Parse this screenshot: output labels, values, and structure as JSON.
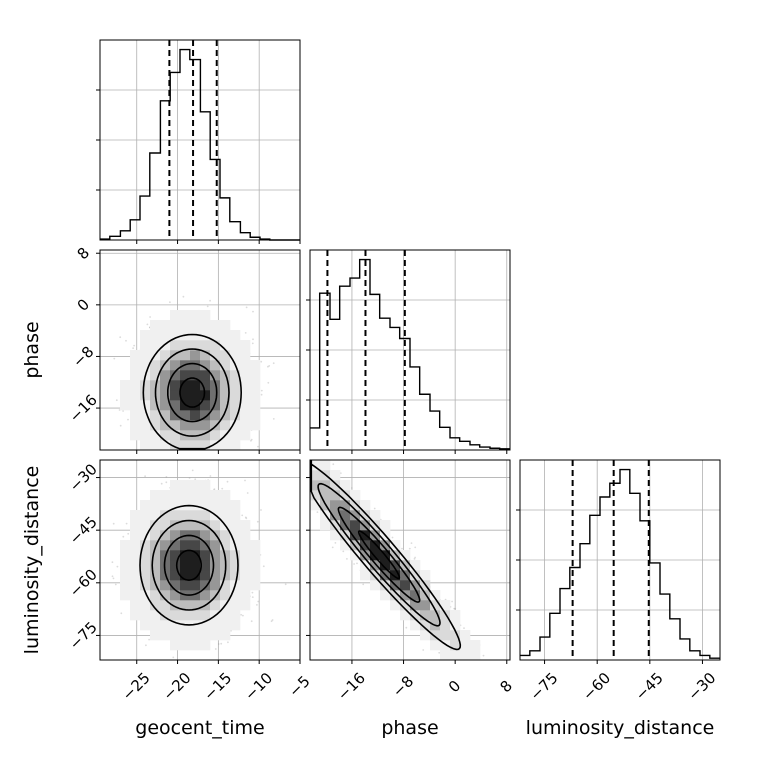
{
  "chart_data": {
    "type": "corner",
    "parameters": [
      "geocent_time",
      "phase",
      "luminosity_distance"
    ],
    "axes": {
      "geocent_time": {
        "label": "geocent_time",
        "lim": [
          -29.5,
          -5
        ],
        "ticks": [
          -25,
          -20,
          -15,
          -10,
          -5
        ],
        "tick_labels": [
          "−25",
          "−20",
          "−15",
          "−10",
          "−5"
        ]
      },
      "phase": {
        "label": "phase",
        "lim": [
          -22.5,
          8.5
        ],
        "ticks": [
          -16,
          -8,
          0,
          8
        ],
        "tick_labels": [
          "−16",
          "−8",
          "0",
          "8"
        ]
      },
      "luminosity_distance": {
        "label": "luminosity_distance",
        "lim": [
          -82,
          -25
        ],
        "ticks": [
          -75,
          -60,
          -45,
          -30
        ],
        "tick_labels": [
          "−75",
          "−60",
          "−45",
          "−30"
        ]
      }
    },
    "grid": true,
    "histograms": [
      {
        "parameter": "geocent_time",
        "bin_edges": [
          -29.5,
          -28.3,
          -27.0,
          -25.8,
          -24.6,
          -23.4,
          -22.1,
          -20.9,
          -19.7,
          -18.5,
          -17.2,
          -16.0,
          -14.8,
          -13.6,
          -12.3,
          -11.1,
          -9.9,
          -8.7,
          -7.4,
          -6.2,
          -5.0
        ],
        "counts": [
          1,
          4,
          10,
          22,
          48,
          95,
          152,
          183,
          208,
          197,
          140,
          88,
          46,
          20,
          8,
          3,
          1,
          0,
          0,
          0
        ],
        "quantiles": [
          -21.0,
          -18.1,
          -15.2
        ]
      },
      {
        "parameter": "phase",
        "bin_edges": [
          -22.5,
          -21.0,
          -19.4,
          -17.9,
          -16.3,
          -14.8,
          -13.2,
          -11.7,
          -10.1,
          -8.6,
          -7.0,
          -5.5,
          -3.9,
          -2.4,
          -0.8,
          0.7,
          2.3,
          3.8,
          5.4,
          6.9,
          8.5
        ],
        "counts": [
          38,
          270,
          225,
          282,
          296,
          328,
          268,
          227,
          211,
          192,
          143,
          96,
          67,
          39,
          21,
          15,
          9,
          5,
          3,
          2
        ],
        "quantiles": [
          -19.8,
          -13.9,
          -7.8
        ]
      },
      {
        "parameter": "luminosity_distance",
        "bin_edges": [
          -82.0,
          -79.2,
          -76.3,
          -73.5,
          -70.6,
          -67.8,
          -64.9,
          -62.1,
          -59.2,
          -56.4,
          -53.5,
          -50.7,
          -47.8,
          -45.0,
          -42.1,
          -39.3,
          -36.4,
          -33.6,
          -30.7,
          -27.9,
          -25.0
        ],
        "counts": [
          5,
          10,
          25,
          51,
          78,
          101,
          127,
          158,
          178,
          193,
          208,
          182,
          152,
          106,
          72,
          45,
          23,
          10,
          5,
          2
        ],
        "quantiles": [
          -67.0,
          -55.3,
          -45.3
        ]
      }
    ],
    "density_panels": [
      {
        "x": "geocent_time",
        "y": "phase",
        "center": [
          -18.2,
          -13.6
        ],
        "sd": [
          3.0,
          4.5
        ],
        "corr": 0.0,
        "y_clip": [
          -22.3,
          null
        ],
        "contour_levels": [
          "39.3%",
          "86.5%",
          "98.9%"
        ]
      },
      {
        "x": "geocent_time",
        "y": "luminosity_distance",
        "center": [
          -18.6,
          -55.0
        ],
        "sd": [
          3.0,
          8.5
        ],
        "corr": 0.0,
        "contour_levels": [
          "39.3%",
          "86.5%",
          "98.9%"
        ]
      },
      {
        "x": "phase",
        "y": "luminosity_distance",
        "center": [
          -11.8,
          -52.0
        ],
        "sd": [
          6.3,
          13.5
        ],
        "corr": -0.96,
        "x_clip": [
          -22.3,
          null
        ],
        "contour_levels": [
          "39.3%",
          "86.5%",
          "98.9%"
        ]
      }
    ]
  }
}
